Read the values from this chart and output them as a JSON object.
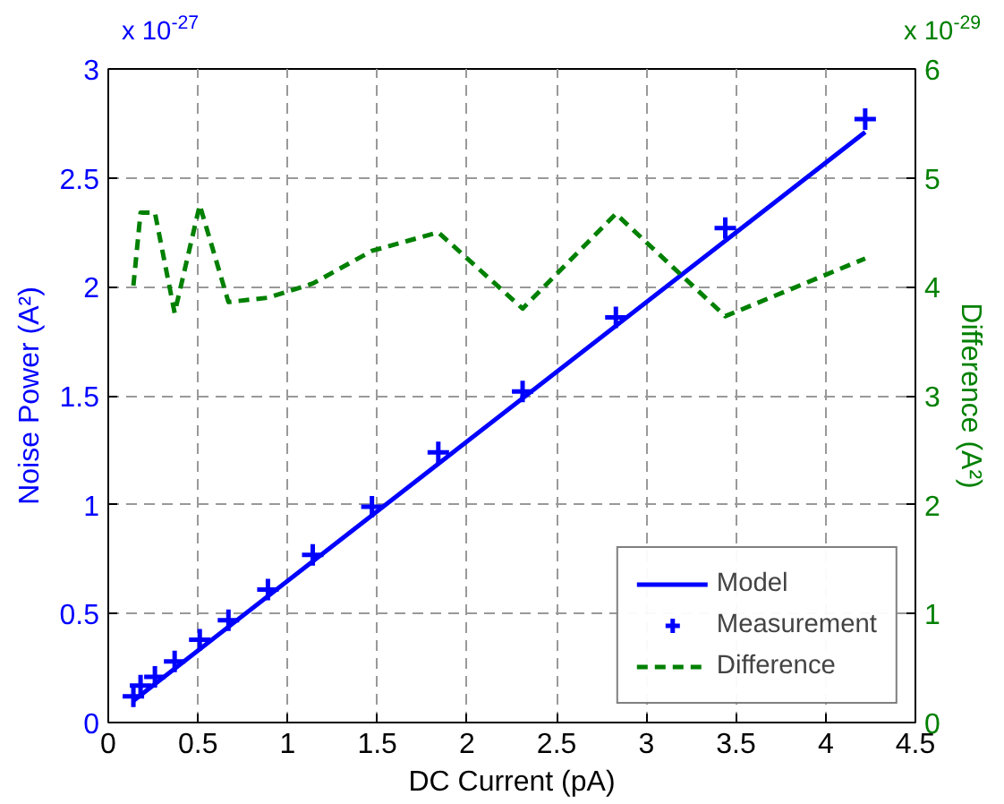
{
  "chart_data": {
    "type": "line",
    "xlabel": "DC Current (pA)",
    "ylabel": "Noise Power (A²)",
    "y2label": "Difference (A²)",
    "annotations": [
      "x 10$^{-27}$",
      "x 10$^{-29}$"
    ],
    "xlim": [
      0,
      4.5
    ],
    "xticks": [
      0,
      0.5,
      1,
      1.5,
      2,
      2.5,
      3,
      3.5,
      4,
      4.5
    ],
    "ylim": [
      0,
      3
    ],
    "yticks": [
      0,
      0.5,
      1,
      1.5,
      2,
      2.5,
      3
    ],
    "y2lim": [
      0,
      6
    ],
    "y2ticks": [
      0,
      1,
      2,
      3,
      4,
      5,
      6
    ],
    "grid": true,
    "legend": "bottom right",
    "series": [
      {
        "name": "Model",
        "color": "#0000ff",
        "line_style": "solid",
        "marker": "none",
        "x": [
          0.14,
          4.22
        ],
        "values": [
          0.1,
          2.71
        ]
      },
      {
        "name": "Measurement",
        "type": "scatter",
        "color": "#0000ff",
        "marker": "cross",
        "x": [
          0.14,
          0.18,
          0.26,
          0.37,
          0.51,
          0.67,
          0.89,
          1.14,
          1.47,
          1.84,
          2.31,
          2.83,
          3.44,
          4.22
        ],
        "values": [
          0.12,
          0.17,
          0.21,
          0.28,
          0.38,
          0.47,
          0.61,
          0.77,
          0.99,
          1.24,
          1.52,
          1.86,
          2.27,
          2.77
        ]
      },
      {
        "name": "Difference",
        "type": "line",
        "axis": "y2",
        "color": "#008000",
        "line_style": "dashed",
        "marker": "none",
        "x": [
          0.14,
          0.18,
          0.26,
          0.37,
          0.51,
          0.67,
          0.89,
          1.14,
          1.47,
          1.84,
          2.31,
          2.83,
          3.44,
          4.22
        ],
        "values": [
          4.01,
          4.68,
          4.68,
          3.76,
          4.75,
          3.86,
          3.9,
          4.03,
          4.33,
          4.5,
          3.8,
          4.67,
          3.73,
          4.26
        ]
      }
    ]
  }
}
